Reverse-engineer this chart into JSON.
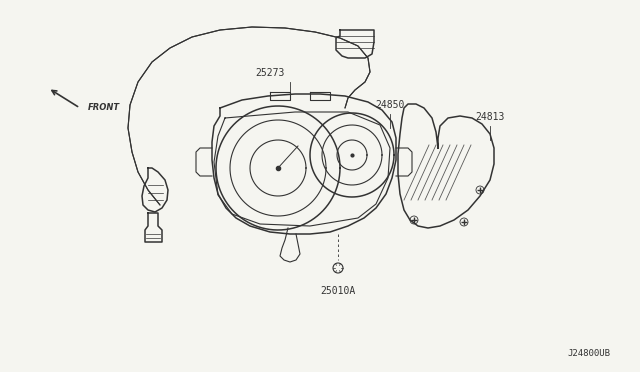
{
  "bg_color": "#f5f5f0",
  "line_color": "#333333",
  "label_color": "#222222",
  "labels": {
    "front_label": "FRONT",
    "part_25273": "25273",
    "part_24850": "24850",
    "part_24813": "24813",
    "part_25010A": "25010A",
    "diagram_id": "J24800UB"
  },
  "figsize": [
    6.4,
    3.72
  ],
  "dpi": 100
}
